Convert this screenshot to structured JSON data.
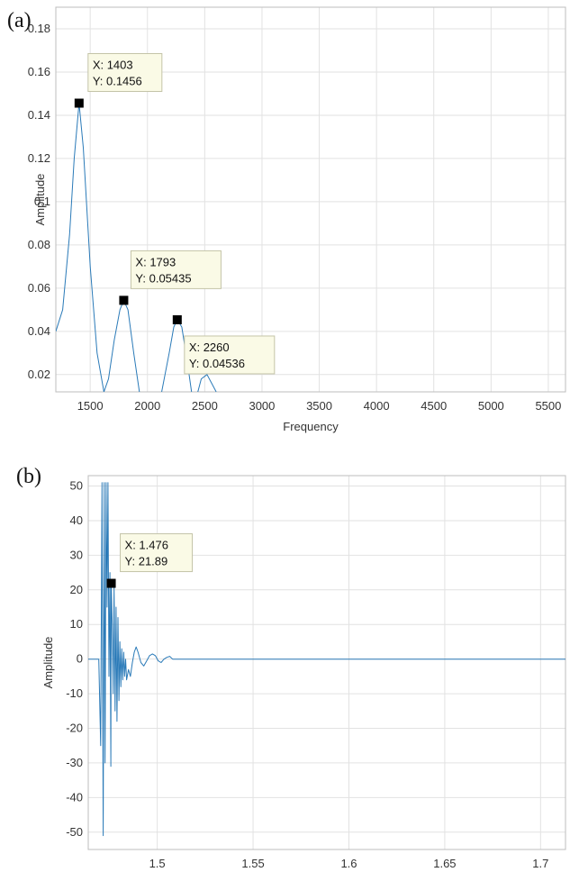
{
  "chart_data": [
    {
      "panel": "(a)",
      "type": "line",
      "xlabel": "Frequency",
      "ylabel": "Amplitude",
      "xlim": [
        1200,
        5650
      ],
      "ylim": [
        0.012,
        0.19
      ],
      "xticks": [
        1500,
        2000,
        2500,
        3000,
        3500,
        4000,
        4500,
        5000,
        5500
      ],
      "yticks": [
        0.02,
        0.04,
        0.06,
        0.08,
        0.1,
        0.12,
        0.14,
        0.16,
        0.18
      ],
      "grid": true,
      "series": [
        {
          "color": "#2a7ab8",
          "x": [
            1200,
            1260,
            1320,
            1360,
            1403,
            1440,
            1500,
            1560,
            1620,
            1660,
            1710,
            1760,
            1793,
            1830,
            1880,
            1930,
            1970,
            2030,
            2110,
            2190,
            2230,
            2260,
            2300,
            2350,
            2390,
            2420,
            2470,
            2520,
            2560,
            2600
          ],
          "y": [
            0.04,
            0.05,
            0.085,
            0.12,
            0.1456,
            0.125,
            0.07,
            0.03,
            0.012,
            0.018,
            0.036,
            0.05,
            0.05435,
            0.05,
            0.03,
            0.012,
            0.004,
            0.004,
            0.008,
            0.03,
            0.042,
            0.04536,
            0.042,
            0.025,
            0.01,
            0.008,
            0.018,
            0.02,
            0.016,
            0.012
          ]
        }
      ],
      "datatips": [
        {
          "x": 1403,
          "y": 0.1456,
          "x_text": "X: 1403",
          "y_text": "Y: 0.1456"
        },
        {
          "x": 1793,
          "y": 0.05435,
          "x_text": "X: 1793",
          "y_text": "Y: 0.05435"
        },
        {
          "x": 2260,
          "y": 0.04536,
          "x_text": "X: 2260",
          "y_text": "Y: 0.04536"
        }
      ]
    },
    {
      "panel": "(b)",
      "type": "line",
      "xlabel": "",
      "ylabel": "Amplitude",
      "xlim": [
        1.464,
        1.713
      ],
      "ylim": [
        -55,
        53
      ],
      "xticks": [
        1.5,
        1.55,
        1.6,
        1.65,
        1.7
      ],
      "yticks": [
        -50,
        -40,
        -30,
        -20,
        -10,
        0,
        10,
        20,
        30,
        40,
        50
      ],
      "grid": true,
      "series": [
        {
          "color": "#2a7ab8",
          "x": [
            1.464,
            1.4695,
            1.4705,
            1.4712,
            1.4718,
            1.4723,
            1.4728,
            1.4733,
            1.4738,
            1.4743,
            1.4748,
            1.4753,
            1.4758,
            1.476,
            1.4765,
            1.477,
            1.4775,
            1.478,
            1.4785,
            1.479,
            1.4795,
            1.48,
            1.4805,
            1.481,
            1.4815,
            1.482,
            1.4825,
            1.483,
            1.4835,
            1.484,
            1.485,
            1.486,
            1.487,
            1.488,
            1.489,
            1.49,
            1.4915,
            1.493,
            1.4945,
            1.496,
            1.4975,
            1.499,
            1.5005,
            1.502,
            1.5035,
            1.505,
            1.5065,
            1.508,
            1.51,
            1.515,
            1.52,
            1.53,
            1.55,
            1.6,
            1.65,
            1.713
          ],
          "y": [
            0,
            0,
            -25,
            51,
            -51,
            51,
            -30,
            51,
            15,
            51,
            -5,
            25,
            -31,
            21.89,
            10,
            -10,
            21,
            -15,
            15,
            -18,
            12,
            -12,
            5,
            -8,
            3,
            -6,
            2,
            -5,
            0,
            -6,
            -3,
            -5,
            -1,
            2,
            3.5,
            2,
            -1,
            -2,
            -0.5,
            1,
            1.5,
            1,
            -0.5,
            -1,
            0,
            0.5,
            0.8,
            0,
            0,
            0,
            0,
            0,
            0,
            0,
            0,
            0
          ]
        }
      ],
      "datatips": [
        {
          "x": 1.476,
          "y": 21.89,
          "x_text": "X: 1.476",
          "y_text": "Y: 21.89"
        }
      ]
    }
  ]
}
